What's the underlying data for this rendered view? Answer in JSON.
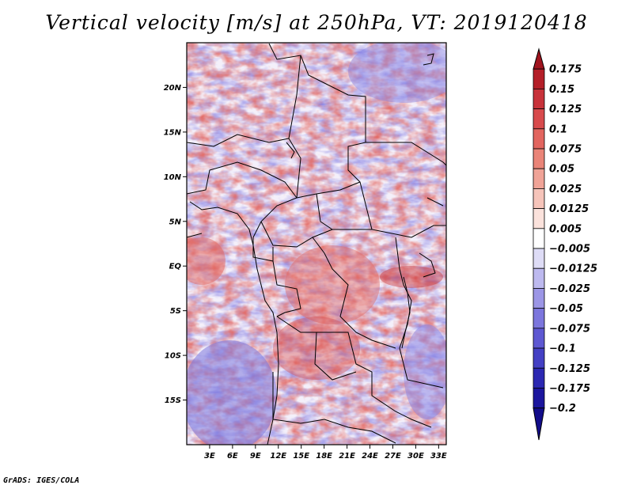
{
  "title": "Vertical velocity [m/s] at 250hPa, VT: 2019120418",
  "credit": "GrADS: IGES/COLA",
  "map": {
    "lon_range": [
      0,
      34
    ],
    "lat_range": [
      -20,
      25
    ],
    "lat_ticks": [
      "20N",
      "15N",
      "10N",
      "5N",
      "EQ",
      "5S",
      "10S",
      "15S"
    ],
    "lat_values": [
      20,
      15,
      10,
      5,
      0,
      -5,
      -10,
      -15
    ],
    "lon_ticks": [
      "3E",
      "6E",
      "9E",
      "12E",
      "15E",
      "18E",
      "21E",
      "24E",
      "27E",
      "30E",
      "33E"
    ],
    "lon_values": [
      3,
      6,
      9,
      12,
      15,
      18,
      21,
      24,
      27,
      30,
      33
    ]
  },
  "colorbar": {
    "labels": [
      "0.175",
      "0.15",
      "0.125",
      "0.1",
      "0.075",
      "0.05",
      "0.025",
      "0.0125",
      "0.005",
      "−0.005",
      "−0.0125",
      "−0.025",
      "−0.05",
      "−0.075",
      "−0.1",
      "−0.125",
      "−0.175",
      "−0.2"
    ],
    "colors": [
      "#a0141e",
      "#b41e28",
      "#c8323a",
      "#d84a4c",
      "#e2655f",
      "#ea8478",
      "#f0a397",
      "#f6c4ba",
      "#fbe2dc",
      "#ffffff",
      "#dedcf6",
      "#bdb9ef",
      "#9c96e6",
      "#7c76dd",
      "#5e58d2",
      "#4440c4",
      "#2c28b2",
      "#1c169e",
      "#120c8a"
    ]
  }
}
